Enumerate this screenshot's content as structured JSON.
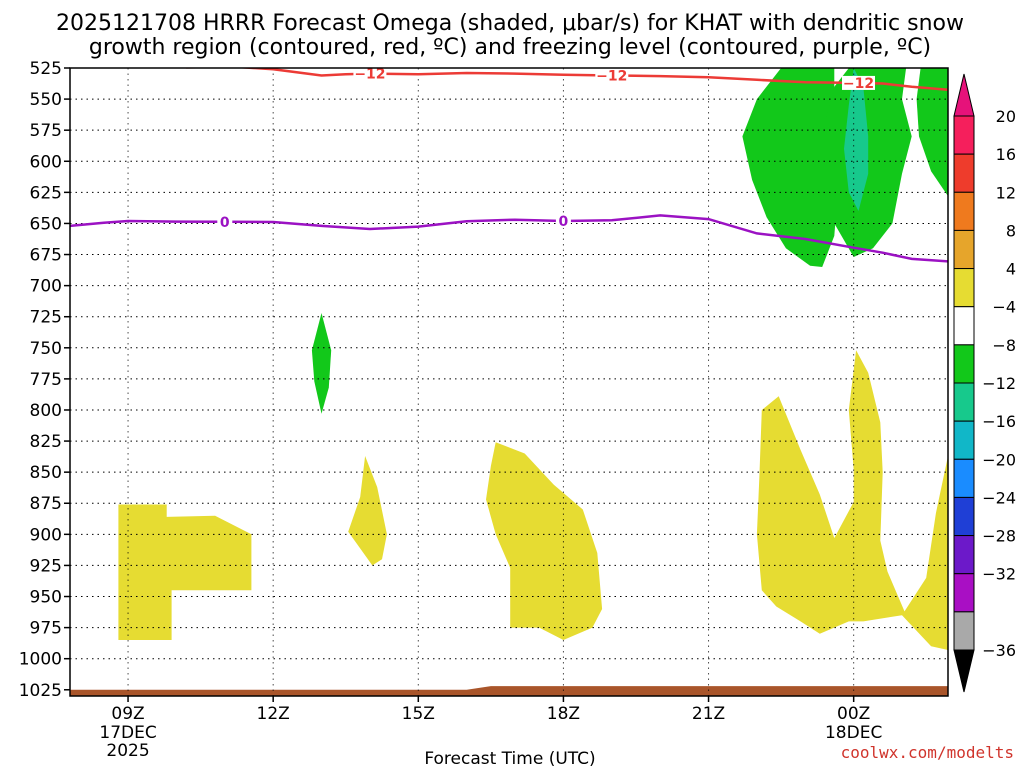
{
  "chart_data": {
    "type": "heatmap",
    "title": "2025121708 HRRR Forecast Omega (shaded, μbar/s) for KHAT with dendritic snow growth region (contoured, red, ºC) and freezing level (contoured, purple, ºC)",
    "title_lines": [
      "2025121708 HRRR Forecast Omega (shaded, μbar/s) for KHAT with dendritic snow",
      "growth region (contoured, red, ºC) and freezing level (contoured, purple, ºC)"
    ],
    "xlabel": "Forecast Time (UTC)",
    "ylabel": "",
    "credit": "coolwx.com/modelts",
    "x_range_hours": [
      7.8,
      25.95
    ],
    "y_range_hpa": [
      525,
      1030
    ],
    "y_ticks": [
      525,
      550,
      575,
      600,
      625,
      650,
      675,
      700,
      725,
      750,
      775,
      800,
      825,
      850,
      875,
      900,
      925,
      950,
      975,
      1000,
      1025
    ],
    "x_ticks": [
      {
        "hour": 9,
        "label": "09Z",
        "sub": [
          "17DEC",
          "2025"
        ]
      },
      {
        "hour": 12,
        "label": "12Z",
        "sub": []
      },
      {
        "hour": 15,
        "label": "15Z",
        "sub": []
      },
      {
        "hour": 18,
        "label": "18Z",
        "sub": []
      },
      {
        "hour": 21,
        "label": "21Z",
        "sub": []
      },
      {
        "hour": 24,
        "label": "00Z",
        "sub": [
          "18DEC"
        ]
      }
    ],
    "grid": true,
    "colorbar": {
      "labels": [
        "20",
        "16",
        "12",
        "8",
        "4",
        "−4",
        "−8",
        "−12",
        "−16",
        "−20",
        "−24",
        "−28",
        "−32",
        "−36"
      ],
      "colors": [
        "#f51f5c",
        "#ee3c2c",
        "#ef7a1e",
        "#e6a52b",
        "#e6dc32",
        "#ffffff",
        "#12c81a",
        "#17c98c",
        "#11b7c8",
        "#1a8cff",
        "#1f3fd6",
        "#6c19c9",
        "#a90fc4",
        "#a9a9a9"
      ],
      "top_arrow_color": "#e6127a",
      "bottom_arrow_color": "#000000"
    },
    "contours": [
      {
        "name": "dendritic-growth-region",
        "level": "-12",
        "color": "#ec3b36",
        "points": [
          [
            10.2,
            524.5
          ],
          [
            11.2,
            524
          ],
          [
            12,
            526
          ],
          [
            13,
            531
          ],
          [
            13.5,
            530
          ],
          [
            14,
            529.5
          ],
          [
            15,
            530
          ],
          [
            16,
            529
          ],
          [
            17,
            529.5
          ],
          [
            18,
            530.5
          ],
          [
            19,
            531
          ],
          [
            20,
            531.5
          ],
          [
            21,
            532.5
          ],
          [
            22,
            534.5
          ],
          [
            23,
            536.5
          ],
          [
            24,
            537
          ],
          [
            24.6,
            537.5
          ],
          [
            25.2,
            540
          ],
          [
            25.95,
            542.5
          ]
        ],
        "labels": [
          [
            14,
            529.5
          ],
          [
            19,
            531
          ],
          [
            24.1,
            537
          ]
        ]
      },
      {
        "name": "freezing-level",
        "level": "0",
        "color": "#9b12c3",
        "points": [
          [
            7.8,
            652
          ],
          [
            8.5,
            649.5
          ],
          [
            9,
            648
          ],
          [
            10,
            648.5
          ],
          [
            11,
            648.7
          ],
          [
            12,
            648.8
          ],
          [
            13,
            652
          ],
          [
            14,
            654.5
          ],
          [
            15,
            652.5
          ],
          [
            16,
            648.2
          ],
          [
            17,
            647
          ],
          [
            18,
            648
          ],
          [
            19,
            647.5
          ],
          [
            20,
            643.5
          ],
          [
            21,
            646.5
          ],
          [
            22,
            658
          ],
          [
            23,
            662.5
          ],
          [
            24,
            669.5
          ],
          [
            24.6,
            673.5
          ],
          [
            25.2,
            678.5
          ],
          [
            25.95,
            680.5
          ]
        ],
        "labels": [
          [
            11,
            648.7
          ],
          [
            18,
            648
          ]
        ]
      }
    ],
    "omega_regions": [
      {
        "omega": "-4 to -8",
        "color": "#12c81a",
        "points": [
          [
            22.6,
            520
          ],
          [
            23.6,
            520
          ],
          [
            23.6,
            540
          ],
          [
            23.7,
            570
          ],
          [
            23.7,
            610
          ],
          [
            23.6,
            660
          ],
          [
            23.35,
            685
          ],
          [
            23.1,
            684
          ],
          [
            22.6,
            670
          ],
          [
            22.2,
            645
          ],
          [
            21.9,
            615
          ],
          [
            21.7,
            580
          ],
          [
            22.0,
            550
          ]
        ]
      },
      {
        "omega": "-4 to -8",
        "color": "#12c81a",
        "points": [
          [
            24.0,
            520
          ],
          [
            25.1,
            520
          ],
          [
            25.0,
            550
          ],
          [
            25.2,
            580
          ],
          [
            25.0,
            610
          ],
          [
            24.8,
            650
          ],
          [
            24.4,
            670
          ],
          [
            24.0,
            677
          ],
          [
            23.6,
            650
          ],
          [
            23.45,
            610
          ],
          [
            23.4,
            570
          ],
          [
            23.6,
            540
          ]
        ]
      },
      {
        "omega": "-8 to -12",
        "color": "#17c98c",
        "points": [
          [
            24.0,
            525
          ],
          [
            24.2,
            540
          ],
          [
            24.3,
            580
          ],
          [
            24.3,
            610
          ],
          [
            24.1,
            640
          ],
          [
            23.9,
            625
          ],
          [
            23.8,
            590
          ],
          [
            23.9,
            555
          ]
        ]
      },
      {
        "omega": "-4 to -8",
        "color": "#12c81a",
        "points": [
          [
            25.4,
            520
          ],
          [
            25.95,
            520
          ],
          [
            25.95,
            628
          ],
          [
            25.6,
            608
          ],
          [
            25.35,
            580
          ],
          [
            25.3,
            550
          ]
        ]
      },
      {
        "omega": "-4 to -8",
        "color": "#12c81a",
        "points": [
          [
            13.0,
            722
          ],
          [
            13.2,
            752
          ],
          [
            13.15,
            782
          ],
          [
            13.0,
            803
          ],
          [
            12.85,
            777
          ],
          [
            12.8,
            752
          ]
        ]
      },
      {
        "omega": "4 to 8",
        "color": "#e6dc32",
        "points": [
          [
            8.8,
            876
          ],
          [
            9.8,
            876
          ],
          [
            9.8,
            886
          ],
          [
            10.8,
            885
          ],
          [
            11.55,
            900
          ],
          [
            11.55,
            945
          ],
          [
            9.9,
            945
          ],
          [
            9.9,
            985
          ],
          [
            8.8,
            985
          ]
        ]
      },
      {
        "omega": "4 to 8",
        "color": "#e6dc32",
        "points": [
          [
            13.9,
            837
          ],
          [
            14.15,
            862
          ],
          [
            14.35,
            900
          ],
          [
            14.25,
            920
          ],
          [
            14.05,
            925
          ],
          [
            13.7,
            906
          ],
          [
            13.55,
            898
          ],
          [
            13.8,
            870
          ]
        ]
      },
      {
        "omega": "4 to 8",
        "color": "#e6dc32",
        "points": [
          [
            16.6,
            826
          ],
          [
            17.2,
            835
          ],
          [
            17.8,
            860
          ],
          [
            18.4,
            880
          ],
          [
            18.7,
            915
          ],
          [
            18.8,
            960
          ],
          [
            18.6,
            975
          ],
          [
            18.0,
            985
          ],
          [
            17.5,
            975
          ],
          [
            16.9,
            975
          ],
          [
            16.9,
            927
          ],
          [
            16.6,
            900
          ],
          [
            16.4,
            872
          ],
          [
            16.5,
            845
          ]
        ]
      },
      {
        "omega": "4 to 8",
        "color": "#e6dc32",
        "points": [
          [
            22.1,
            800
          ],
          [
            22.45,
            789
          ],
          [
            22.9,
            832
          ],
          [
            23.3,
            868
          ],
          [
            23.6,
            903
          ],
          [
            24.0,
            874
          ],
          [
            24.0,
            848
          ],
          [
            23.9,
            800
          ],
          [
            24.05,
            752
          ],
          [
            24.3,
            770
          ],
          [
            24.55,
            810
          ],
          [
            24.6,
            850
          ],
          [
            24.55,
            905
          ],
          [
            24.7,
            930
          ],
          [
            25.05,
            962
          ],
          [
            25.5,
            935
          ],
          [
            25.7,
            883
          ],
          [
            25.95,
            837
          ],
          [
            25.95,
            993
          ],
          [
            25.6,
            990
          ],
          [
            25.0,
            965
          ],
          [
            24.2,
            970
          ],
          [
            23.9,
            970
          ],
          [
            23.3,
            980
          ],
          [
            22.9,
            970
          ],
          [
            22.4,
            958
          ],
          [
            22.1,
            945
          ],
          [
            22.0,
            900
          ],
          [
            22.05,
            855
          ]
        ]
      }
    ],
    "terrain": {
      "color": "#a9552a",
      "top_hpa": [
        [
          7.8,
          1025
        ],
        [
          16,
          1025
        ],
        [
          16.5,
          1022
        ],
        [
          25.95,
          1022
        ]
      ],
      "bottom_hpa": 1030
    }
  }
}
